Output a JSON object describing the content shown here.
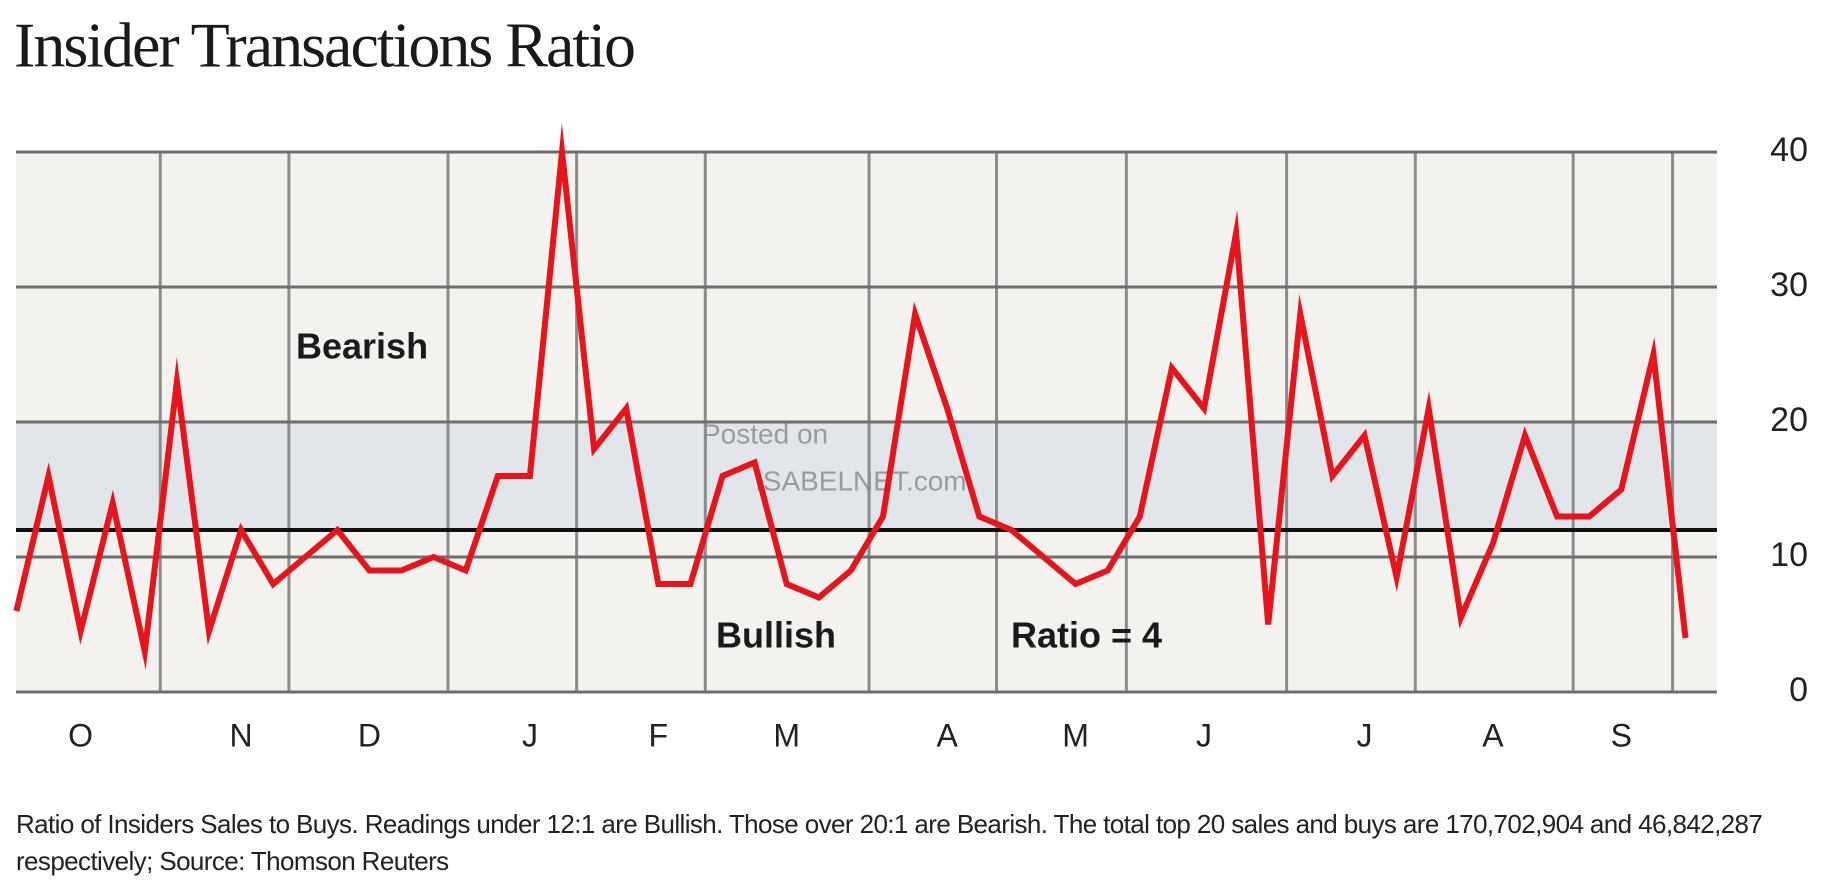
{
  "chart_data": {
    "type": "line",
    "title": "Insider Transactions Ratio",
    "categories": [
      null,
      null,
      "O",
      null,
      null,
      null,
      null,
      "N",
      null,
      null,
      null,
      "D",
      null,
      null,
      null,
      null,
      "J",
      null,
      null,
      null,
      "F",
      null,
      null,
      null,
      "M",
      null,
      null,
      null,
      null,
      "A",
      null,
      null,
      null,
      "M",
      null,
      null,
      null,
      "J",
      null,
      null,
      null,
      null,
      "J",
      null,
      null,
      null,
      "A",
      null,
      null,
      null,
      "S",
      null,
      null
    ],
    "series": [
      {
        "name": "Ratio of Insiders Sales to Buys",
        "color": "#e8141b",
        "values": [
          6,
          16,
          4.5,
          14,
          3,
          23,
          4.5,
          12,
          8,
          10,
          12,
          9,
          9,
          10,
          9,
          16,
          16,
          40,
          18,
          21,
          8,
          8,
          16,
          17,
          8,
          7,
          9,
          13,
          28,
          21,
          13,
          12,
          10,
          8,
          9,
          13,
          24,
          21,
          34,
          5,
          28,
          16,
          19,
          8.5,
          21,
          5.5,
          11,
          19,
          13,
          13,
          15,
          25,
          4
        ]
      }
    ],
    "ylim": [
      0,
      40
    ],
    "yticks": [
      0,
      10,
      20,
      30,
      40
    ],
    "grid": true,
    "shaded_range": [
      12,
      20
    ],
    "reference_line": 12,
    "annotations": [
      "Bearish",
      "Bullish",
      "Ratio = 4"
    ],
    "watermark": [
      "Posted on",
      "ISABELNET.com"
    ],
    "footnote": "Ratio of Insiders Sales to Buys. Readings under 12:1 are Bullish. Those over 20:1 are Bearish. The total top 20 sales and buys are 170,702,904 and 46,842,287 respectively; Source: Thomson Reuters"
  }
}
